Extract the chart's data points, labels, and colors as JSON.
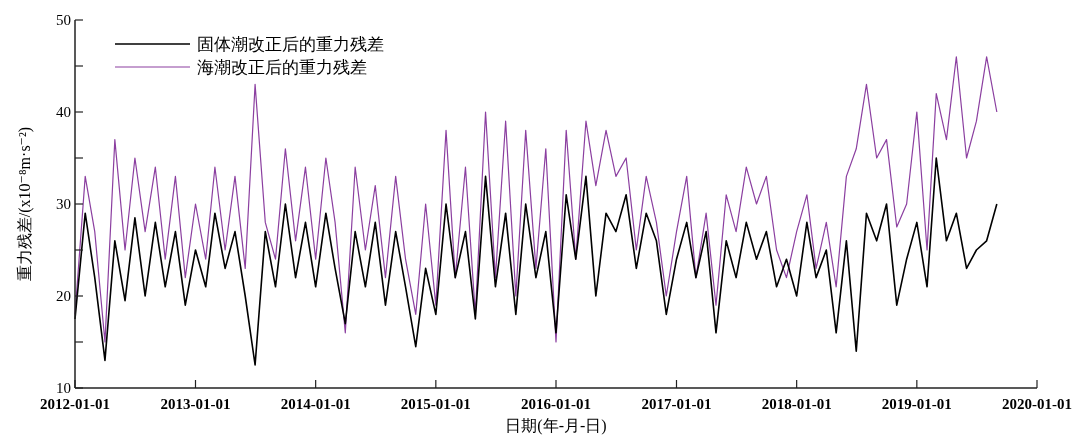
{
  "chart_data": {
    "type": "line",
    "xlabel": "日期(年-月-日)",
    "ylabel": "重力残差/(x10⁻⁸m·s⁻²)",
    "x": [
      "2012-01-01",
      "2012-02-01",
      "2012-03-01",
      "2012-04-01",
      "2012-05-01",
      "2012-06-01",
      "2012-07-01",
      "2012-08-01",
      "2012-09-01",
      "2012-10-01",
      "2012-11-01",
      "2012-12-01",
      "2013-01-01",
      "2013-02-01",
      "2013-03-01",
      "2013-04-01",
      "2013-05-01",
      "2013-06-01",
      "2013-07-01",
      "2013-08-01",
      "2013-09-01",
      "2013-10-01",
      "2013-11-01",
      "2013-12-01",
      "2014-01-01",
      "2014-02-01",
      "2014-03-01",
      "2014-04-01",
      "2014-05-01",
      "2014-06-01",
      "2014-07-01",
      "2014-08-01",
      "2014-09-01",
      "2014-10-01",
      "2014-11-01",
      "2014-12-01",
      "2015-01-01",
      "2015-02-01",
      "2015-03-01",
      "2015-04-01",
      "2015-05-01",
      "2015-06-01",
      "2015-07-01",
      "2015-08-01",
      "2015-09-01",
      "2015-10-01",
      "2015-11-01",
      "2015-12-01",
      "2016-01-01",
      "2016-02-01",
      "2016-03-01",
      "2016-04-01",
      "2016-05-01",
      "2016-06-01",
      "2016-07-01",
      "2016-08-01",
      "2016-09-01",
      "2016-10-01",
      "2016-11-01",
      "2016-12-01",
      "2017-01-01",
      "2017-02-01",
      "2017-03-01",
      "2017-04-01",
      "2017-05-01",
      "2017-06-01",
      "2017-07-01",
      "2017-08-01",
      "2017-09-01",
      "2017-10-01",
      "2017-11-01",
      "2017-12-01",
      "2018-01-01",
      "2018-02-01",
      "2018-03-01",
      "2018-04-01",
      "2018-05-01",
      "2018-06-01",
      "2018-07-01",
      "2018-08-01",
      "2018-09-01",
      "2018-10-01",
      "2018-11-01",
      "2018-12-01",
      "2019-01-01",
      "2019-02-01",
      "2019-03-01",
      "2019-04-01",
      "2019-05-01",
      "2019-06-01",
      "2019-07-01",
      "2019-08-01",
      "2019-09-01"
    ],
    "series": [
      {
        "name": "固体潮改正后的重力残差",
        "color": "#000000",
        "values": [
          17.5,
          29,
          22,
          13,
          26,
          19.5,
          28.5,
          20,
          28,
          21,
          27,
          19,
          25,
          21,
          29,
          23,
          27,
          20,
          12.5,
          27,
          21,
          30,
          22,
          28,
          21,
          29,
          23,
          17,
          27,
          21,
          28,
          19,
          27,
          21,
          14.5,
          23,
          18,
          30,
          22,
          27,
          17.5,
          33,
          21,
          29,
          18,
          30,
          22,
          27,
          16,
          31,
          24,
          33,
          20,
          29,
          27,
          31,
          23,
          29,
          26,
          18,
          24,
          28,
          22,
          27,
          16,
          26,
          22,
          28,
          24,
          27,
          21,
          24,
          20,
          28,
          22,
          25,
          16,
          26,
          14,
          29,
          26,
          30,
          19,
          24,
          28,
          21,
          35,
          26,
          29,
          23,
          25,
          26,
          30
        ]
      },
      {
        "name": "海潮改正后的重力残差",
        "color": "#8b3fa0",
        "values": [
          18,
          33,
          27,
          15,
          37,
          25,
          35,
          27,
          34,
          24,
          33,
          22,
          30,
          24,
          34,
          25,
          33,
          23,
          43,
          28,
          24,
          36,
          26,
          34,
          24,
          35,
          28,
          16,
          34,
          25,
          32,
          22,
          33,
          24,
          18,
          30,
          19,
          38,
          22,
          34,
          18,
          40,
          22,
          39,
          20,
          38,
          23,
          36,
          15,
          38,
          24,
          39,
          32,
          38,
          33,
          35,
          25,
          33,
          28,
          20,
          27,
          33,
          22,
          29,
          19,
          31,
          27,
          34,
          30,
          33,
          25,
          22,
          27,
          31,
          23,
          28,
          21,
          33,
          36,
          43,
          35,
          37,
          27.5,
          30,
          40,
          25,
          42,
          37,
          46,
          35,
          39,
          46,
          40
        ]
      }
    ],
    "xlim": [
      "2012-01-01",
      "2020-01-01"
    ],
    "xticks": [
      "2012-01-01",
      "2013-01-01",
      "2014-01-01",
      "2015-01-01",
      "2016-01-01",
      "2017-01-01",
      "2018-01-01",
      "2019-01-01",
      "2020-01-01"
    ],
    "ylim": [
      10,
      50
    ],
    "yticks": [
      10,
      {
        "value": 15,
        "label": null
      },
      20,
      {
        "value": 25,
        "label": null
      },
      30,
      {
        "value": 35,
        "label": null
      },
      40,
      {
        "value": 45,
        "label": null
      },
      50
    ],
    "legend": "top left",
    "grid": false
  }
}
